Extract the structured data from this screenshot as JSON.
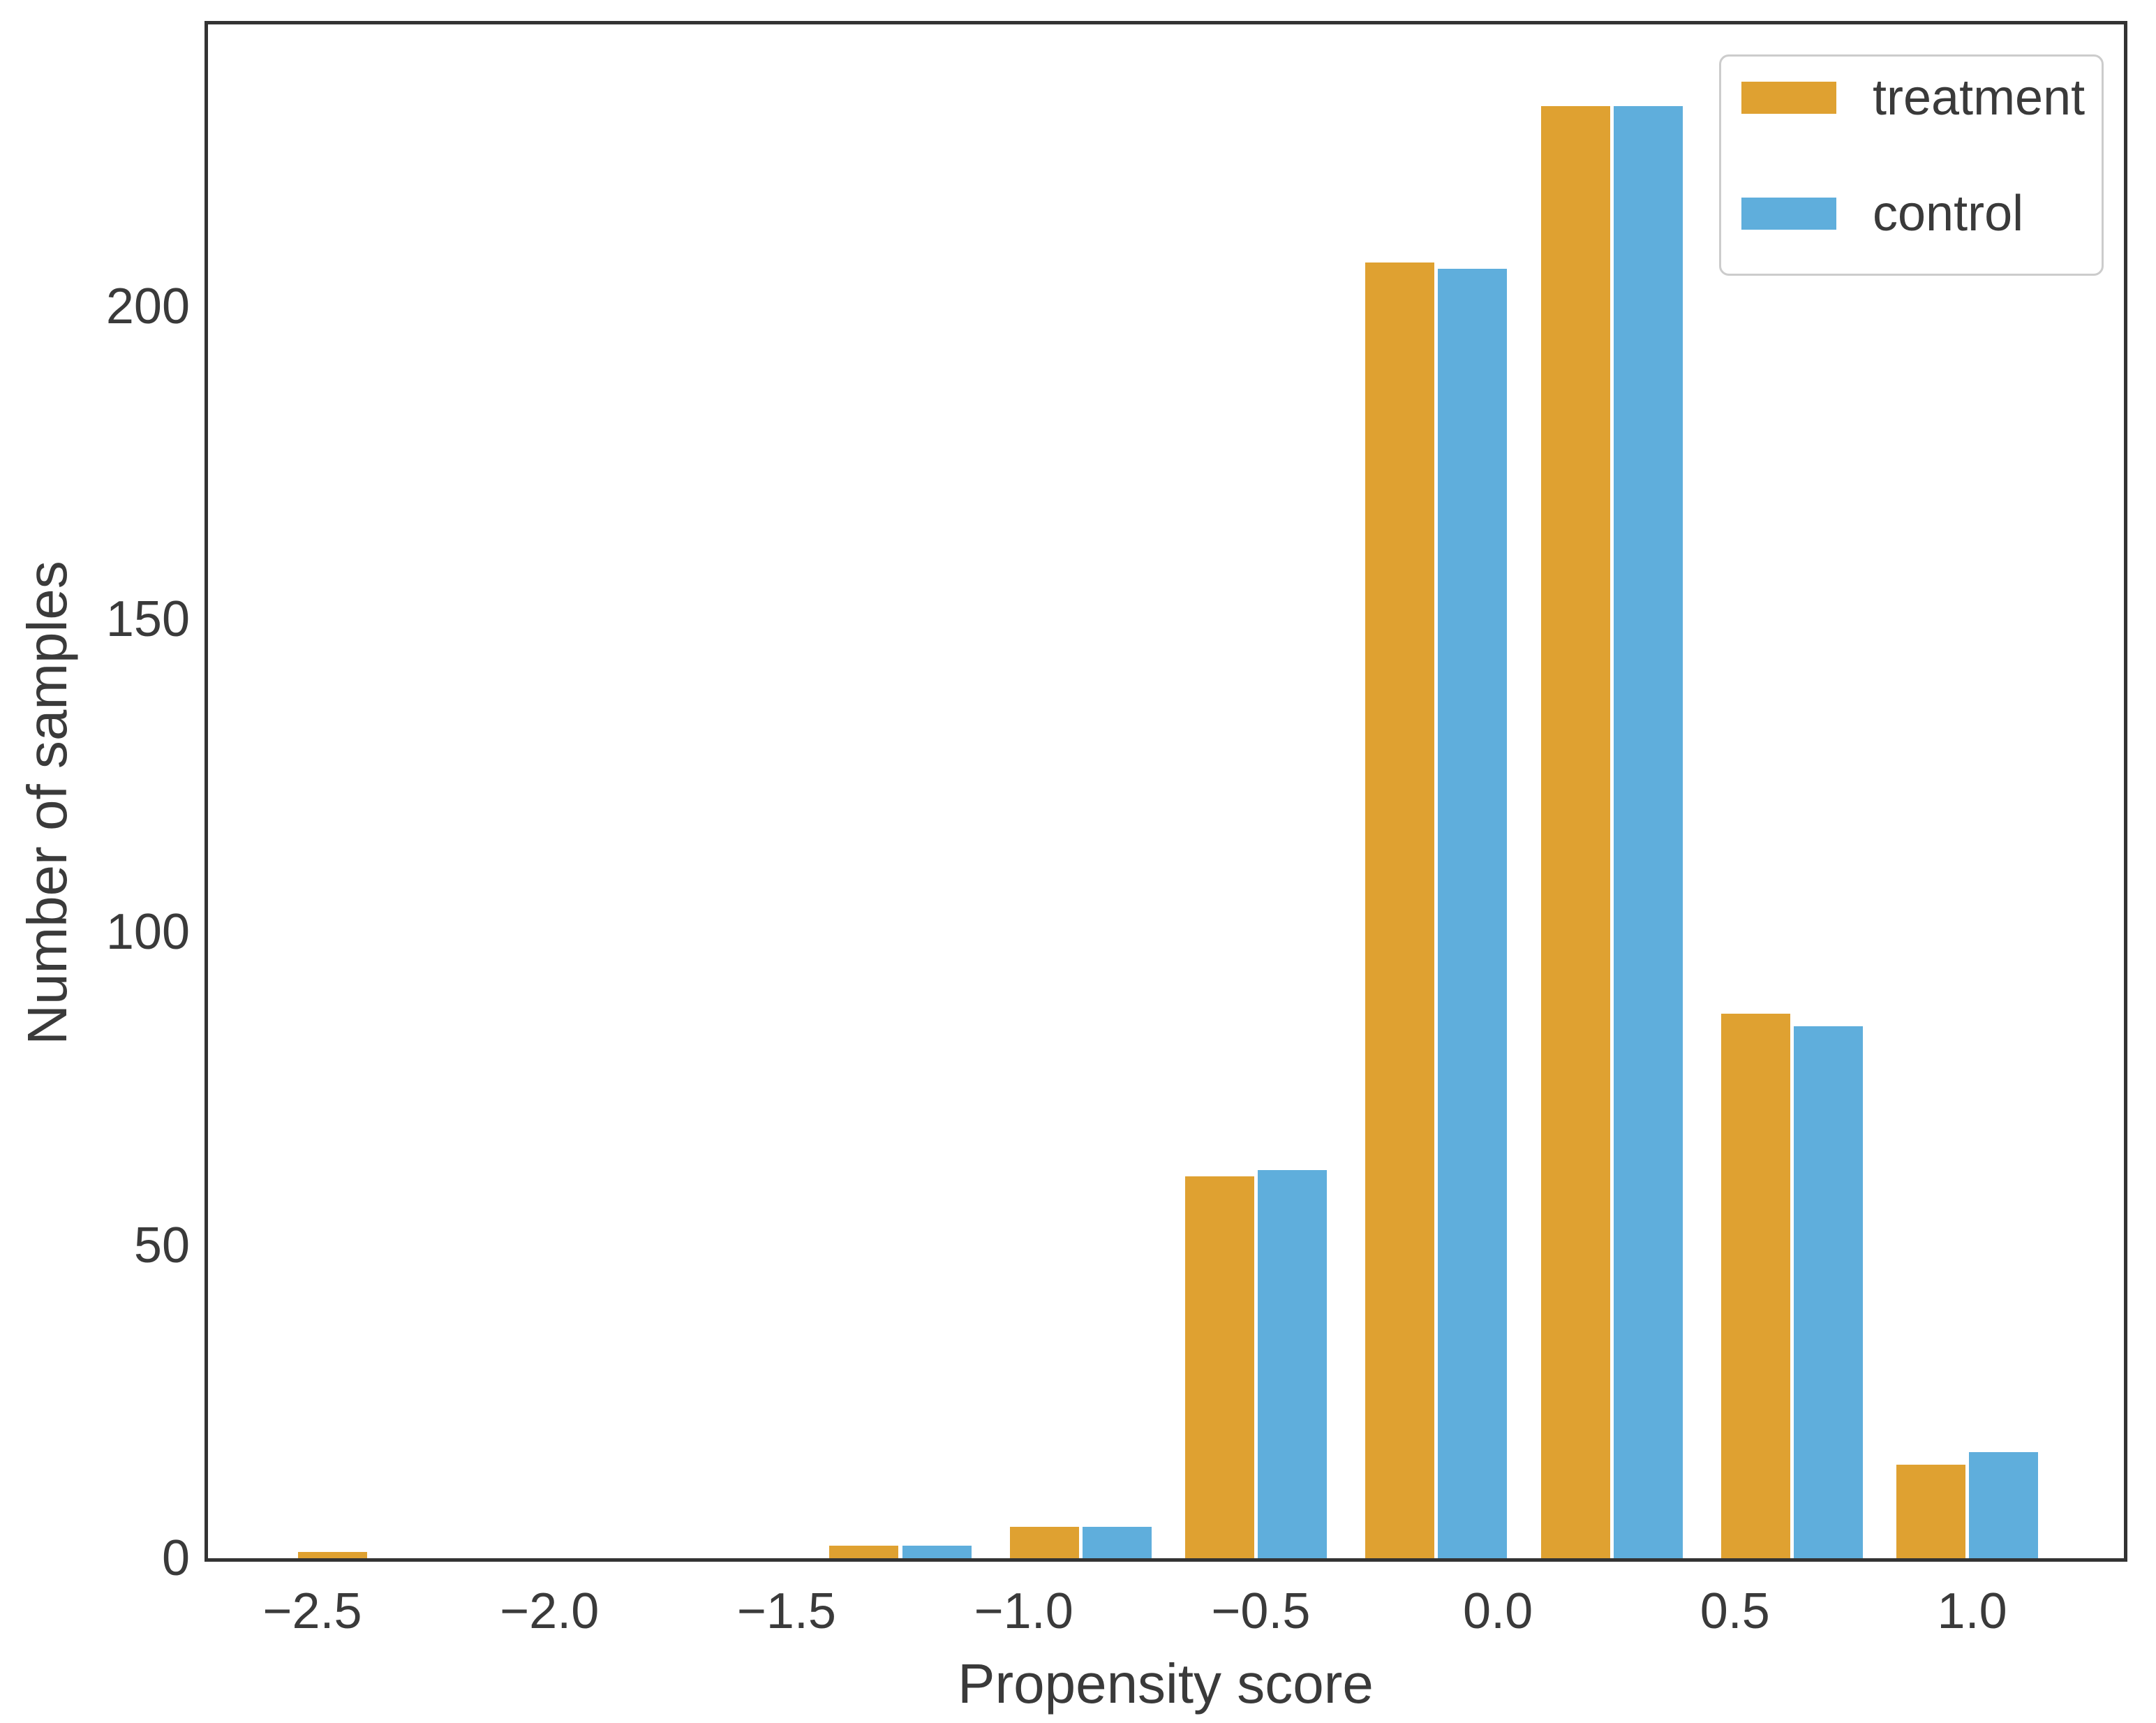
{
  "figure": {
    "background": "#ffffff",
    "text_color": "#3a3a3a",
    "spine_color": "#333333"
  },
  "chart_data": {
    "type": "bar",
    "subtype": "grouped-histogram",
    "title": "",
    "xlabel": "Propensity score",
    "ylabel": "Number of samples",
    "grid": false,
    "legend_position": "upper right",
    "xlim": [
      -2.72,
      1.32
    ],
    "ylim": [
      0,
      245
    ],
    "x_tick_values": [
      -2.5,
      -2.0,
      -1.5,
      -1.0,
      -0.5,
      0.0,
      0.5,
      1.0
    ],
    "x_tick_labels": [
      "−2.5",
      "−2.0",
      "−1.5",
      "−1.0",
      "−0.5",
      "0.0",
      "0.5",
      "1.0"
    ],
    "y_tick_values": [
      0,
      50,
      100,
      150,
      200
    ],
    "y_tick_labels": [
      "0",
      "50",
      "100",
      "150",
      "200"
    ],
    "bin_centers": [
      -2.38,
      -2.01,
      -1.63,
      -1.26,
      -0.88,
      -0.51,
      -0.13,
      0.24,
      0.62,
      0.99
    ],
    "bin_width": 0.375,
    "bar_width_units": 0.146,
    "series": [
      {
        "name": "treatment",
        "color": "#dfa131",
        "values": [
          1,
          0,
          0,
          2,
          5,
          61,
          207,
          232,
          87,
          15
        ]
      },
      {
        "name": "control",
        "color": "#5faedc",
        "values": [
          0,
          0,
          0,
          2,
          5,
          62,
          206,
          232,
          85,
          17
        ]
      }
    ]
  }
}
